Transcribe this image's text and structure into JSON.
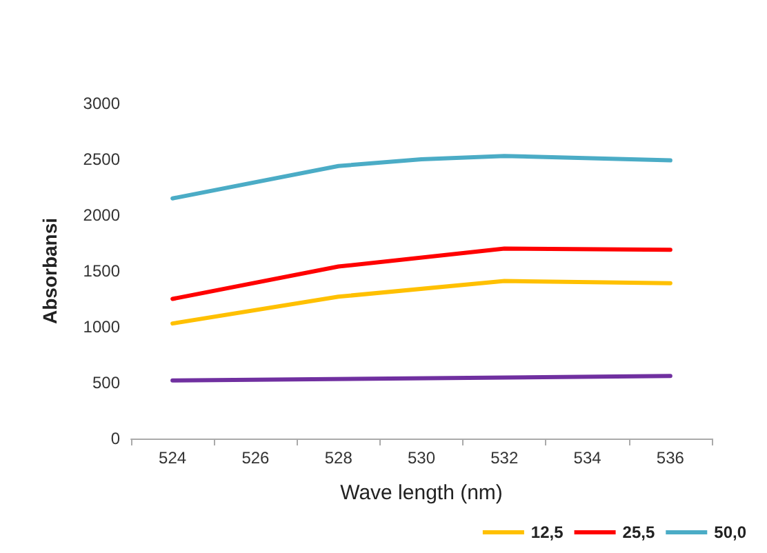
{
  "chart_data": {
    "type": "line",
    "xlabel": "Wave length (nm)",
    "ylabel": "Absorbansi",
    "categories": [
      "524",
      "526",
      "528",
      "530",
      "532",
      "534",
      "536"
    ],
    "series": [
      {
        "color": "#7030a0",
        "values": [
          520,
          null,
          null,
          null,
          null,
          null,
          560
        ]
      },
      {
        "name": "12,5",
        "color": "#ffc000",
        "values": [
          1030,
          null,
          1270,
          null,
          1410,
          null,
          1390
        ]
      },
      {
        "name": "25,5",
        "color": "#ff0000",
        "values": [
          1250,
          null,
          1540,
          null,
          1700,
          null,
          1690
        ]
      },
      {
        "name": "50,0",
        "color": "#4bacc6",
        "values": [
          2150,
          null,
          2440,
          2500,
          2530,
          null,
          2490
        ]
      }
    ],
    "ylim": [
      0,
      3000
    ],
    "yticks": [
      0,
      500,
      1000,
      1500,
      2000,
      2500,
      3000
    ],
    "grid": false,
    "legend": "bottom right",
    "marker": "none",
    "line_style": "solid"
  }
}
